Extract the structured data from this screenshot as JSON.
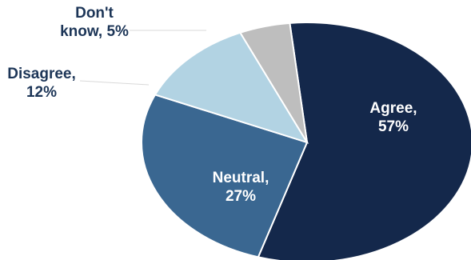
{
  "chart_data": {
    "type": "pie",
    "title": "",
    "slices": [
      {
        "category": "Agree",
        "value": 57,
        "color": "#14284b",
        "label_line1": "Agree,",
        "label_line2": "57%",
        "label_color": "#ffffff"
      },
      {
        "category": "Neutral",
        "value": 27,
        "color": "#3a6791",
        "label_line1": "Neutral,",
        "label_line2": "27%",
        "label_color": "#ffffff"
      },
      {
        "category": "Disagree",
        "value": 12,
        "color": "#b2d3e3",
        "label_line1": "Disagree,",
        "label_line2": "12%",
        "label_color": "#1c3557"
      },
      {
        "category": "Don't know",
        "value": 5,
        "color": "#bebebe",
        "label_line1": "Don't",
        "label_line2": "know, 5%",
        "label_color": "#1c3557"
      }
    ],
    "legend": "none",
    "data_labels": "category and percent"
  }
}
